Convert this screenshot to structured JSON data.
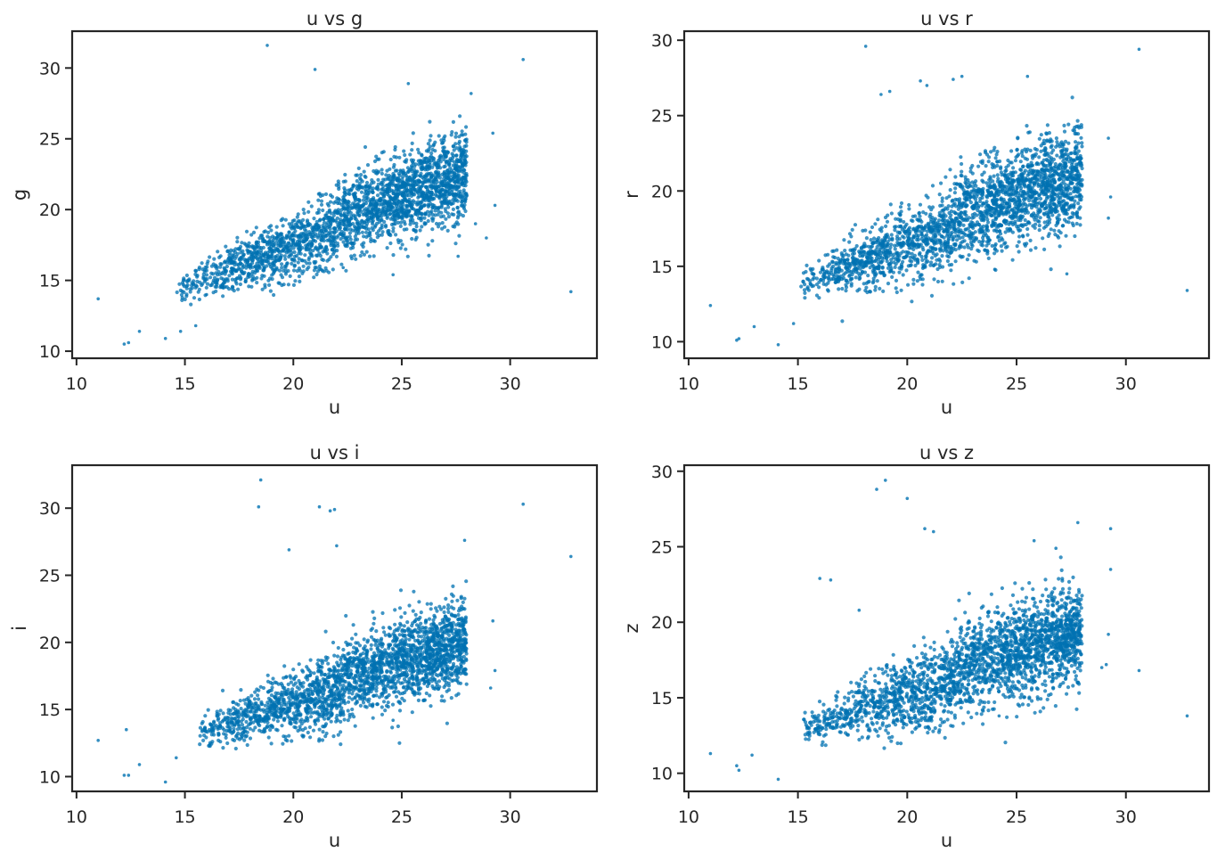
{
  "colors": {
    "points": "#0072b2",
    "axes": "#262626",
    "background": "#ffffff"
  },
  "chart_data": [
    {
      "type": "scatter",
      "title": "u vs g",
      "xlabel": "u",
      "ylabel": "g",
      "xlim": [
        9.8,
        34.0
      ],
      "ylim": [
        9.5,
        32.6
      ],
      "xticks": [
        10,
        15,
        20,
        25,
        30
      ],
      "yticks": [
        10,
        15,
        20,
        25,
        30
      ],
      "grid": false,
      "cloud": {
        "x_range": [
          14.5,
          28.0
        ],
        "y_at_x_start": 14.3,
        "y_at_x_end": 22.0,
        "y_spread": 2.2
      },
      "outliers": [
        [
          18.8,
          31.6
        ],
        [
          21.0,
          29.9
        ],
        [
          30.6,
          30.6
        ],
        [
          32.8,
          14.2
        ],
        [
          11.0,
          13.7
        ],
        [
          12.2,
          10.5
        ],
        [
          12.4,
          10.6
        ],
        [
          12.9,
          11.4
        ],
        [
          14.1,
          10.9
        ],
        [
          14.8,
          11.4
        ],
        [
          15.5,
          11.8
        ],
        [
          28.2,
          28.2
        ],
        [
          25.3,
          28.9
        ],
        [
          29.2,
          25.4
        ],
        [
          29.3,
          20.3
        ],
        [
          28.9,
          18.0
        ],
        [
          28.4,
          19.0
        ],
        [
          24.6,
          15.4
        ],
        [
          27.6,
          16.7
        ],
        [
          22.3,
          15.9
        ],
        [
          16.0,
          14.0
        ]
      ]
    },
    {
      "type": "scatter",
      "title": "u vs r",
      "xlabel": "u",
      "ylabel": "r",
      "xlim": [
        9.8,
        33.8
      ],
      "ylim": [
        8.9,
        30.6
      ],
      "xticks": [
        10,
        15,
        20,
        25,
        30
      ],
      "yticks": [
        10,
        15,
        20,
        25,
        30
      ],
      "grid": false,
      "cloud": {
        "x_range": [
          15.0,
          28.0
        ],
        "y_at_x_start": 13.8,
        "y_at_x_end": 20.5,
        "y_spread": 2.4
      },
      "outliers": [
        [
          18.1,
          29.6
        ],
        [
          30.6,
          29.4
        ],
        [
          32.8,
          13.4
        ],
        [
          11.0,
          12.4
        ],
        [
          12.2,
          10.1
        ],
        [
          12.3,
          10.2
        ],
        [
          13.0,
          11.0
        ],
        [
          14.1,
          9.8
        ],
        [
          14.8,
          11.2
        ],
        [
          29.2,
          23.5
        ],
        [
          29.2,
          18.2
        ],
        [
          29.3,
          19.6
        ],
        [
          27.3,
          14.5
        ],
        [
          25.5,
          27.6
        ],
        [
          22.5,
          27.6
        ],
        [
          20.6,
          27.3
        ],
        [
          20.9,
          27.0
        ],
        [
          19.2,
          26.6
        ],
        [
          18.8,
          26.4
        ],
        [
          22.1,
          27.4
        ],
        [
          24.0,
          14.8
        ]
      ]
    },
    {
      "type": "scatter",
      "title": "u vs i",
      "xlabel": "u",
      "ylabel": "i",
      "xlim": [
        9.8,
        34.0
      ],
      "ylim": [
        8.9,
        33.2
      ],
      "xticks": [
        10,
        15,
        20,
        25,
        30
      ],
      "yticks": [
        10,
        15,
        20,
        25,
        30
      ],
      "grid": false,
      "cloud": {
        "x_range": [
          15.5,
          28.0
        ],
        "y_at_x_start": 13.3,
        "y_at_x_end": 19.4,
        "y_spread": 2.4
      },
      "outliers": [
        [
          18.5,
          32.1
        ],
        [
          18.4,
          30.1
        ],
        [
          21.2,
          30.1
        ],
        [
          21.7,
          29.8
        ],
        [
          21.9,
          29.9
        ],
        [
          30.6,
          30.3
        ],
        [
          32.8,
          26.4
        ],
        [
          11.0,
          12.7
        ],
        [
          12.2,
          10.1
        ],
        [
          12.4,
          10.1
        ],
        [
          12.9,
          10.9
        ],
        [
          14.1,
          9.6
        ],
        [
          12.3,
          13.5
        ],
        [
          14.6,
          11.4
        ],
        [
          27.9,
          27.6
        ],
        [
          22.0,
          27.2
        ],
        [
          19.8,
          26.9
        ],
        [
          29.2,
          21.6
        ],
        [
          29.3,
          17.9
        ],
        [
          29.1,
          16.6
        ],
        [
          24.6,
          14.2
        ]
      ]
    },
    {
      "type": "scatter",
      "title": "u vs z",
      "xlabel": "u",
      "ylabel": "z",
      "xlim": [
        9.8,
        33.8
      ],
      "ylim": [
        8.8,
        30.4
      ],
      "xticks": [
        10,
        15,
        20,
        25,
        30
      ],
      "yticks": [
        10,
        15,
        20,
        25,
        30
      ],
      "grid": false,
      "cloud": {
        "x_range": [
          15.0,
          28.0
        ],
        "y_at_x_start": 12.9,
        "y_at_x_end": 18.9,
        "y_spread": 2.4
      },
      "outliers": [
        [
          19.0,
          29.4
        ],
        [
          18.6,
          28.8
        ],
        [
          20.0,
          28.2
        ],
        [
          20.8,
          26.2
        ],
        [
          21.2,
          26.0
        ],
        [
          30.6,
          16.8
        ],
        [
          32.8,
          13.8
        ],
        [
          11.0,
          11.3
        ],
        [
          12.2,
          10.5
        ],
        [
          12.3,
          10.2
        ],
        [
          12.9,
          11.2
        ],
        [
          14.1,
          9.6
        ],
        [
          29.3,
          26.2
        ],
        [
          29.3,
          23.5
        ],
        [
          27.8,
          26.6
        ],
        [
          26.8,
          24.9
        ],
        [
          25.8,
          25.4
        ],
        [
          29.1,
          17.2
        ],
        [
          29.2,
          19.2
        ],
        [
          28.9,
          17.0
        ],
        [
          24.2,
          13.8
        ],
        [
          16.0,
          22.9
        ],
        [
          16.5,
          22.8
        ],
        [
          17.8,
          20.8
        ]
      ]
    }
  ]
}
